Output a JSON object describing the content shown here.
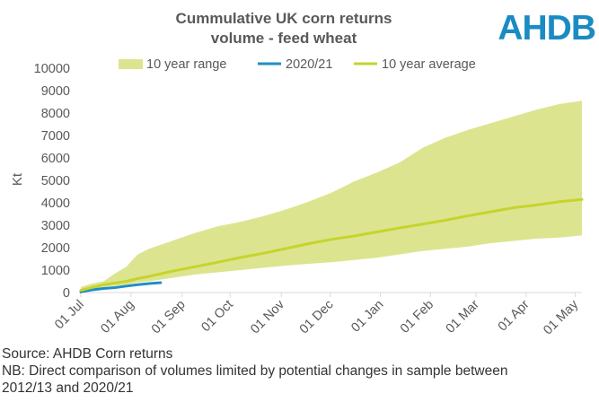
{
  "branding": {
    "logo_text": "AHDB",
    "logo_color": "#1a8bc3"
  },
  "chart_data": {
    "type": "area",
    "title": "Cummulative UK corn returns",
    "subtitle": "volume - feed wheat",
    "xlabel": "",
    "ylabel": "Kt",
    "ylim": [
      0,
      10000
    ],
    "yticks": [
      0,
      1000,
      2000,
      3000,
      4000,
      5000,
      6000,
      7000,
      8000,
      9000,
      10000
    ],
    "xlim": [
      0,
      44
    ],
    "x_unit": "weeks since 01 Jul",
    "x_tick_positions": [
      0,
      4.4,
      8.9,
      13.1,
      17.6,
      21.9,
      26.3,
      30.7,
      34.7,
      39.1,
      43.4
    ],
    "x_tick_labels": [
      "01 Jul",
      "01 Aug",
      "01 Sep",
      "01 Oct",
      "01 Nov",
      "01 Dec",
      "01 Jan",
      "01 Feb",
      "01 Mar",
      "01 Apr",
      "01 May"
    ],
    "legend_position": "top",
    "colors": {
      "range_fill": "#dde48f",
      "current": "#1f8ec6",
      "average": "#c5d42c",
      "axis_text": "#595959",
      "axis_line": "#d9d9d9",
      "title": "#595959"
    },
    "series": [
      {
        "name": "10 year range",
        "kind": "range",
        "x": [
          0,
          1,
          2,
          3,
          4,
          5,
          6,
          8,
          10,
          12,
          14,
          16,
          18,
          20,
          22,
          24,
          26,
          28,
          30,
          32,
          34,
          36,
          38,
          40,
          42,
          44
        ],
        "lower": [
          50,
          150,
          250,
          300,
          350,
          450,
          500,
          650,
          800,
          900,
          1000,
          1100,
          1200,
          1280,
          1350,
          1450,
          1550,
          1700,
          1850,
          1950,
          2050,
          2200,
          2300,
          2400,
          2450,
          2550
        ],
        "upper": [
          250,
          400,
          500,
          850,
          1150,
          1700,
          1950,
          2300,
          2650,
          2950,
          3150,
          3400,
          3700,
          4050,
          4450,
          4950,
          5350,
          5800,
          6450,
          6900,
          7250,
          7550,
          7850,
          8150,
          8400,
          8550
        ]
      },
      {
        "name": "2020/21",
        "kind": "line",
        "x": [
          0,
          1,
          2,
          3,
          4,
          5,
          6,
          7
        ],
        "values": [
          30,
          120,
          180,
          220,
          290,
          350,
          400,
          440
        ]
      },
      {
        "name": "10 year average",
        "kind": "line",
        "x": [
          0,
          1,
          2,
          3,
          4,
          5,
          6,
          8,
          10,
          12,
          14,
          16,
          18,
          20,
          22,
          24,
          26,
          28,
          30,
          32,
          34,
          36,
          38,
          40,
          42,
          44
        ],
        "values": [
          100,
          230,
          350,
          420,
          500,
          620,
          720,
          950,
          1150,
          1350,
          1560,
          1750,
          1960,
          2180,
          2370,
          2520,
          2700,
          2880,
          3050,
          3220,
          3420,
          3600,
          3780,
          3900,
          4050,
          4150
        ]
      }
    ]
  },
  "footer": {
    "source": "Source: AHDB Corn returns",
    "note_line1": "NB: Direct comparison of volumes limited by potential changes in sample between",
    "note_line2": "2012/13 and 2020/21"
  }
}
